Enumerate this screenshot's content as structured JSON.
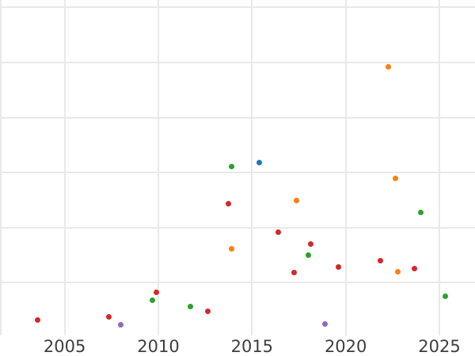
{
  "chart_data": {
    "type": "scatter",
    "title": "",
    "xlabel": "",
    "ylabel": "",
    "grid": true,
    "legend": "none",
    "background_color": "#ffffff",
    "gridline_color": "#e9e9e9",
    "tick_label_color": "#3e3e3e",
    "y_axis_note": "y-axis tick labels are cropped outside the visible image; y values are measured in gridline units (1 unit = one horizontal gridline spacing)",
    "x_range": [
      2001.55,
      2026.9
    ],
    "y_range_units": [
      0.04,
      6.136
    ],
    "x_gridlines": [
      2001.59,
      2005,
      2010,
      2015,
      2020,
      2025
    ],
    "y_gridlines_units": [
      1,
      2,
      3,
      4,
      5,
      6
    ],
    "x_ticks": [
      {
        "value": 2005,
        "label": "2005"
      },
      {
        "value": 2010,
        "label": "2010"
      },
      {
        "value": 2015,
        "label": "2015"
      },
      {
        "value": 2020,
        "label": "2020"
      },
      {
        "value": 2025,
        "label": "2025"
      }
    ],
    "series": [
      {
        "name": "blue",
        "color": "#1f77b4",
        "points": [
          {
            "x": 2015.37,
            "y": 3.18
          }
        ]
      },
      {
        "name": "orange",
        "color": "#ff7f0e",
        "points": [
          {
            "x": 2013.92,
            "y": 1.62
          },
          {
            "x": 2017.38,
            "y": 2.49
          },
          {
            "x": 2022.27,
            "y": 4.92
          },
          {
            "x": 2022.65,
            "y": 2.89
          },
          {
            "x": 2022.8,
            "y": 1.2
          }
        ]
      },
      {
        "name": "green",
        "color": "#2ca02c",
        "points": [
          {
            "x": 2009.67,
            "y": 0.68
          },
          {
            "x": 2011.73,
            "y": 0.57
          },
          {
            "x": 2013.9,
            "y": 3.11
          },
          {
            "x": 2018.0,
            "y": 1.5
          },
          {
            "x": 2024.02,
            "y": 2.27
          },
          {
            "x": 2025.3,
            "y": 0.75
          }
        ]
      },
      {
        "name": "red",
        "color": "#d62728",
        "points": [
          {
            "x": 2003.55,
            "y": 0.32
          },
          {
            "x": 2007.35,
            "y": 0.38
          },
          {
            "x": 2009.89,
            "y": 0.83
          },
          {
            "x": 2012.63,
            "y": 0.48
          },
          {
            "x": 2013.73,
            "y": 2.43
          },
          {
            "x": 2016.38,
            "y": 1.92
          },
          {
            "x": 2017.26,
            "y": 1.18
          },
          {
            "x": 2018.14,
            "y": 1.7
          },
          {
            "x": 2019.6,
            "y": 1.29
          },
          {
            "x": 2021.87,
            "y": 1.4
          },
          {
            "x": 2023.66,
            "y": 1.25
          }
        ]
      },
      {
        "name": "purple",
        "color": "#9467bd",
        "points": [
          {
            "x": 2007.98,
            "y": 0.24
          },
          {
            "x": 2018.89,
            "y": 0.25
          }
        ]
      }
    ]
  }
}
